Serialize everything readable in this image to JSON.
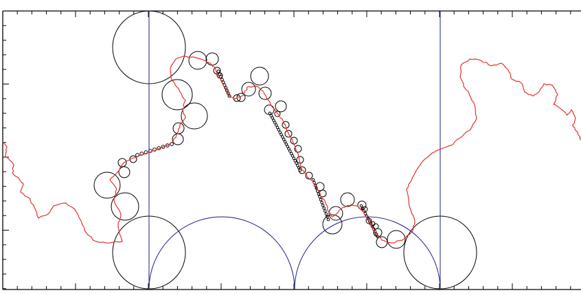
{
  "figure": {
    "title": "",
    "colors": {
      "frame": "#000000",
      "domain_lines": "#2e3192",
      "curve": "#e8302a",
      "circles": "#000000",
      "background": "#ffffff"
    },
    "elements": [
      "horocycle-circles",
      "fundamental-domain-lines",
      "fundamental-domain-arcs",
      "fractal-curve"
    ]
  }
}
